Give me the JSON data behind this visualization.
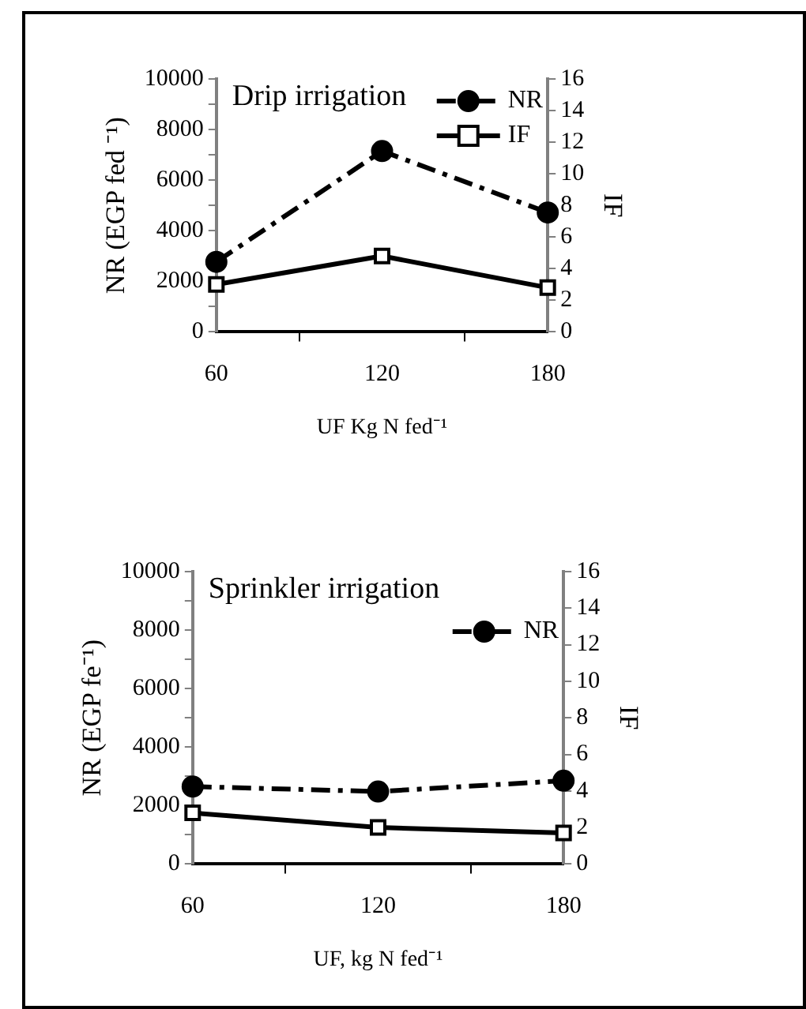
{
  "chart_data": [
    {
      "type": "line",
      "title": "Drip irrigation",
      "xlabel": "UF Kg N fed⁻¹",
      "ylabel": "NR (EGP fed ⁻¹)",
      "y2label": "IF",
      "categories": [
        "60",
        "120",
        "180"
      ],
      "series": [
        {
          "name": "NR",
          "color": "#000000",
          "values": [
            2770,
            7150,
            4720
          ],
          "marker": "circle",
          "line_style": "dashed"
        },
        {
          "name": "IF",
          "color": "#000000",
          "values": [
            3.0,
            4.8,
            2.8
          ],
          "axis": "y2",
          "marker": "square",
          "line_style": "solid"
        }
      ],
      "ylim": [
        0,
        10000
      ],
      "yticks": [
        0,
        {
          "value": 1000,
          "label": null
        },
        2000,
        {
          "value": 3000,
          "label": null
        },
        4000,
        {
          "value": 5000,
          "label": null
        },
        6000,
        {
          "value": 7000,
          "label": null
        },
        8000,
        {
          "value": 9000,
          "label": null
        },
        10000
      ],
      "y2lim": [
        0,
        16
      ],
      "y2ticks": [
        0,
        2,
        4,
        6,
        8,
        10,
        12,
        14,
        16
      ],
      "grid": false,
      "legend": "top right"
    },
    {
      "type": "line",
      "title": "Sprinkler irrigation",
      "xlabel": "UF, kg N fed⁻¹",
      "ylabel": "NR (EGP fe⁻¹)",
      "y2label": "IF",
      "categories": [
        "60",
        "120",
        "180"
      ],
      "series": [
        {
          "name": "NR",
          "color": "#000000",
          "values": [
            2650,
            2480,
            2850
          ],
          "marker": "circle",
          "line_style": "dashed"
        },
        {
          "color": "#000000",
          "values": [
            2.8,
            2.0,
            1.7
          ],
          "axis": "y2",
          "marker": "square",
          "line_style": "solid"
        }
      ],
      "ylim": [
        0,
        10000
      ],
      "yticks": [
        0,
        {
          "value": 1000,
          "label": null
        },
        2000,
        {
          "value": 3000,
          "label": null
        },
        4000,
        {
          "value": 5000,
          "label": null
        },
        6000,
        {
          "value": 7000,
          "label": null
        },
        8000,
        {
          "value": 9000,
          "label": null
        },
        10000
      ],
      "y2lim": [
        0,
        16
      ],
      "y2ticks": [
        0,
        2,
        4,
        6,
        8,
        10,
        12,
        14,
        16
      ],
      "grid": false,
      "legend": "top right"
    }
  ]
}
